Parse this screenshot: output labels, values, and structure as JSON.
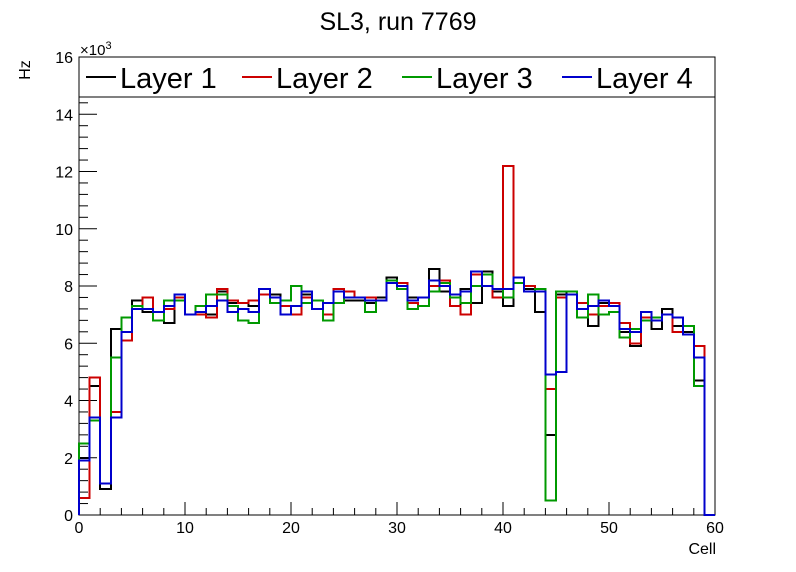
{
  "chart_data": {
    "type": "histogram-step",
    "title": "SL3, run 7769",
    "xlabel": "Cell",
    "ylabel": "Hz",
    "y_exponent_label": "×10",
    "y_exponent_power": "3",
    "xlim": [
      0,
      60
    ],
    "ylim": [
      0,
      16
    ],
    "x_bin_width": 1,
    "x_ticks": [
      0,
      10,
      20,
      30,
      40,
      50,
      60
    ],
    "y_ticks": [
      0,
      2,
      4,
      6,
      8,
      10,
      12,
      14,
      16
    ],
    "legend_position": "top",
    "series": [
      {
        "name": "Layer 1",
        "color": "#000000",
        "values": [
          2.0,
          4.5,
          0.9,
          6.5,
          6.4,
          7.5,
          7.1,
          7.1,
          6.7,
          7.5,
          7.0,
          7.1,
          7.0,
          7.8,
          7.4,
          7.4,
          7.3,
          7.7,
          7.7,
          7.3,
          7.0,
          7.7,
          7.2,
          7.0,
          7.9,
          7.5,
          7.5,
          7.4,
          7.6,
          8.3,
          8.0,
          7.6,
          7.6,
          8.6,
          7.8,
          7.3,
          7.9,
          7.4,
          8.5,
          7.8,
          7.3,
          8.3,
          7.9,
          7.1,
          2.8,
          7.7,
          7.8,
          7.4,
          6.6,
          7.4,
          7.4,
          6.4,
          5.9,
          7.1,
          6.5,
          7.2,
          6.6,
          6.4,
          4.7,
          0.0
        ]
      },
      {
        "name": "Layer 2",
        "color": "#cc0000",
        "values": [
          0.6,
          4.8,
          1.1,
          3.6,
          6.1,
          7.3,
          7.6,
          7.1,
          7.2,
          7.6,
          7.0,
          7.0,
          6.9,
          7.9,
          7.5,
          7.4,
          7.5,
          7.7,
          7.4,
          7.3,
          7.0,
          7.6,
          7.2,
          7.0,
          7.9,
          7.8,
          7.6,
          7.6,
          7.5,
          8.2,
          8.1,
          7.4,
          7.3,
          8.0,
          8.2,
          7.3,
          7.0,
          8.4,
          8.0,
          7.6,
          12.2,
          8.1,
          8.0,
          7.9,
          4.4,
          7.6,
          7.7,
          7.4,
          7.0,
          7.3,
          7.4,
          6.7,
          6.0,
          6.9,
          6.8,
          7.0,
          6.4,
          6.6,
          5.9,
          0.0
        ]
      },
      {
        "name": "Layer 3",
        "color": "#009900",
        "values": [
          2.5,
          3.3,
          1.1,
          5.5,
          6.9,
          7.3,
          7.2,
          6.8,
          7.5,
          7.5,
          7.0,
          7.3,
          7.7,
          7.7,
          7.3,
          6.8,
          6.7,
          7.9,
          7.4,
          7.5,
          8.0,
          7.4,
          7.5,
          6.8,
          7.4,
          7.6,
          7.6,
          7.1,
          7.5,
          8.2,
          7.9,
          7.2,
          7.3,
          7.8,
          8.1,
          7.6,
          7.4,
          8.0,
          8.4,
          7.9,
          7.6,
          8.1,
          7.8,
          7.9,
          0.5,
          7.8,
          7.8,
          6.9,
          7.7,
          7.0,
          7.1,
          6.2,
          6.5,
          6.8,
          6.9,
          7.0,
          6.9,
          6.6,
          4.5,
          0.0
        ]
      },
      {
        "name": "Layer 4",
        "color": "#0000cc",
        "values": [
          1.9,
          3.4,
          1.1,
          3.4,
          6.4,
          7.2,
          7.2,
          7.1,
          7.3,
          7.7,
          7.0,
          7.1,
          7.3,
          7.5,
          7.1,
          7.2,
          7.1,
          7.9,
          7.6,
          7.0,
          7.3,
          7.8,
          7.2,
          7.4,
          7.8,
          7.6,
          7.6,
          7.5,
          7.5,
          8.1,
          8.0,
          7.5,
          7.6,
          8.2,
          8.0,
          7.7,
          7.8,
          8.5,
          8.0,
          7.9,
          7.9,
          8.3,
          7.8,
          7.8,
          4.9,
          5.0,
          7.7,
          7.2,
          7.3,
          7.5,
          7.3,
          6.5,
          6.4,
          7.1,
          6.8,
          7.0,
          6.9,
          6.3,
          5.5,
          0.0
        ]
      }
    ]
  }
}
